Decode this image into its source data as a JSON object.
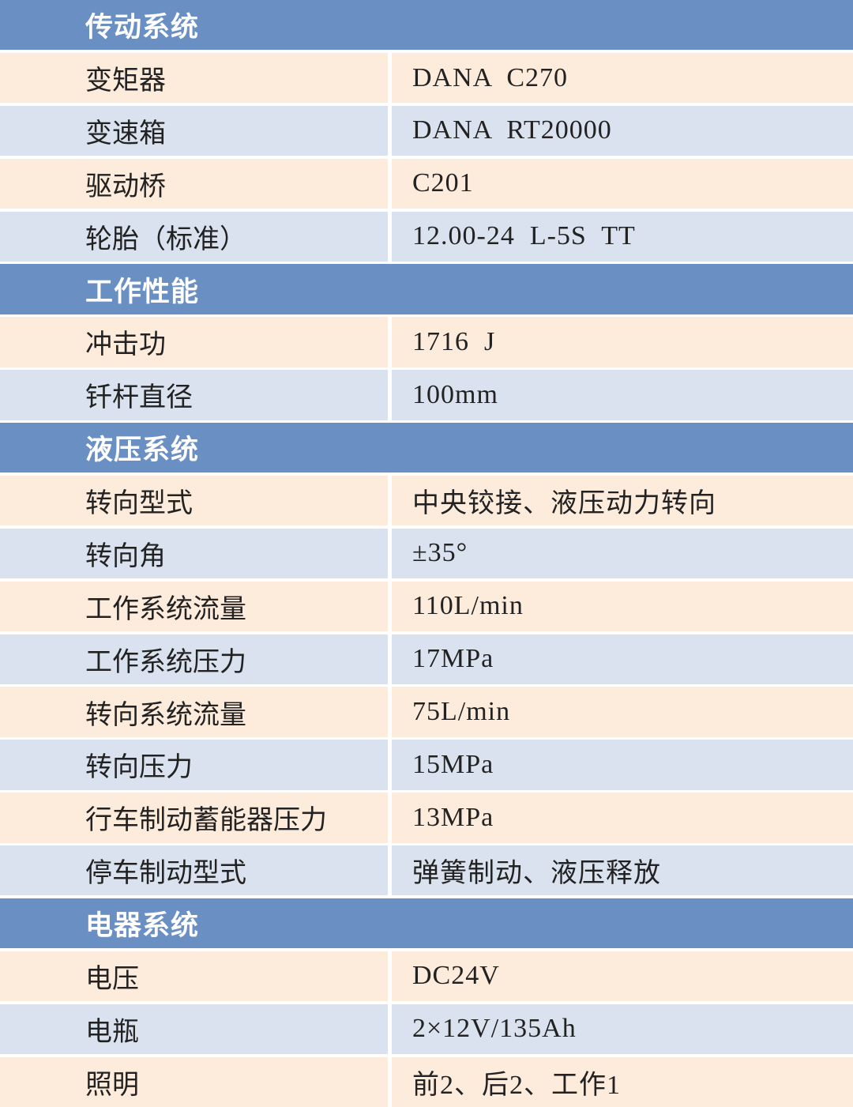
{
  "colors": {
    "section_header": "#6a8fc3",
    "row_odd": "#fdebdc",
    "row_even": "#dae2ef"
  },
  "sections": [
    {
      "title": "传动系统",
      "rows": [
        {
          "label": "变矩器",
          "value": "DANA  C270"
        },
        {
          "label": "变速箱",
          "value": "DANA  RT20000"
        },
        {
          "label": "驱动桥",
          "value": "C201"
        },
        {
          "label": "轮胎（标准）",
          "value": "12.00-24  L-5S  TT"
        }
      ]
    },
    {
      "title": "工作性能",
      "rows": [
        {
          "label": "冲击功",
          "value": "1716  J"
        },
        {
          "label": "钎杆直径",
          "value": "100mm"
        }
      ]
    },
    {
      "title": "液压系统",
      "rows": [
        {
          "label": "转向型式",
          "value": "中央铰接、液压动力转向"
        },
        {
          "label": "转向角",
          "value": "±35°"
        },
        {
          "label": "工作系统流量",
          "value": "110L/min"
        },
        {
          "label": "工作系统压力",
          "value": "17MPa"
        },
        {
          "label": "转向系统流量",
          "value": "75L/min"
        },
        {
          "label": "转向压力",
          "value": "15MPa"
        },
        {
          "label": "行车制动蓄能器压力",
          "value": "13MPa"
        },
        {
          "label": "停车制动型式",
          "value": "弹簧制动、液压释放"
        }
      ]
    },
    {
      "title": "电器系统",
      "rows": [
        {
          "label": "电压",
          "value": "DC24V"
        },
        {
          "label": "电瓶",
          "value": "2×12V/135Ah"
        },
        {
          "label": "照明",
          "value": "前2、后2、工作1"
        }
      ]
    }
  ]
}
